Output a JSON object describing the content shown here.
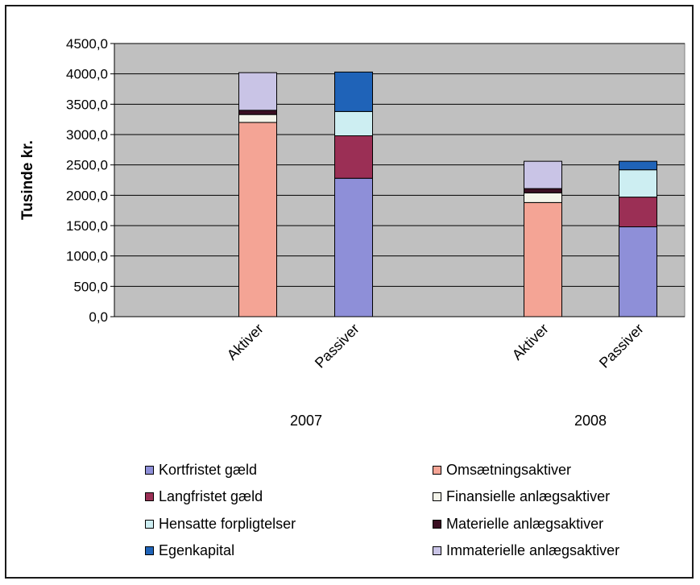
{
  "chart_data": {
    "type": "bar",
    "stacked": true,
    "ylabel": "Tusinde kr.",
    "ylim": [
      0,
      4500
    ],
    "yticks": [
      "0,0",
      "500,0",
      "1000,0",
      "1500,0",
      "2000,0",
      "2500,0",
      "3000,0",
      "3500,0",
      "4000,0",
      "4500,0"
    ],
    "groups": [
      "2007",
      "2008"
    ],
    "categories": [
      "Aktiver",
      "Passiver"
    ],
    "grid": true,
    "plot_background": "#c0c0c0",
    "legend_position": "bottom",
    "legend_order": [
      "Kortfristet gæld",
      "Omsætningsaktiver",
      "Langfristet gæld",
      "Finansielle anlægsaktiver",
      "Hensatte forpligtelser",
      "Materielle anlægsaktiver",
      "Egenkapital",
      "Immaterielle anlægsaktiver"
    ],
    "series": [
      {
        "name": "Omsætningsaktiver",
        "color": "#f4a495",
        "values": {
          "2007": {
            "Aktiver": 3200,
            "Passiver": 0
          },
          "2008": {
            "Aktiver": 1880,
            "Passiver": 0
          }
        }
      },
      {
        "name": "Finansielle anlægsaktiver",
        "color": "#f4f4ea",
        "values": {
          "2007": {
            "Aktiver": 130,
            "Passiver": 0
          },
          "2008": {
            "Aktiver": 160,
            "Passiver": 0
          }
        }
      },
      {
        "name": "Materielle anlægsaktiver",
        "color": "#3a0f22",
        "values": {
          "2007": {
            "Aktiver": 70,
            "Passiver": 0
          },
          "2008": {
            "Aktiver": 70,
            "Passiver": 0
          }
        }
      },
      {
        "name": "Immaterielle anlægsaktiver",
        "color": "#c9c4e6",
        "values": {
          "2007": {
            "Aktiver": 620,
            "Passiver": 0
          },
          "2008": {
            "Aktiver": 450,
            "Passiver": 0
          }
        }
      },
      {
        "name": "Kortfristet gæld",
        "color": "#8e8fd8",
        "values": {
          "2007": {
            "Aktiver": 0,
            "Passiver": 2280
          },
          "2008": {
            "Aktiver": 0,
            "Passiver": 1480
          }
        }
      },
      {
        "name": "Langfristet gæld",
        "color": "#9b2f55",
        "values": {
          "2007": {
            "Aktiver": 0,
            "Passiver": 700
          },
          "2008": {
            "Aktiver": 0,
            "Passiver": 490
          }
        }
      },
      {
        "name": "Hensatte forpligtelser",
        "color": "#cdeef2",
        "values": {
          "2007": {
            "Aktiver": 0,
            "Passiver": 400
          },
          "2008": {
            "Aktiver": 0,
            "Passiver": 450
          }
        }
      },
      {
        "name": "Egenkapital",
        "color": "#1f63b8",
        "values": {
          "2007": {
            "Aktiver": 0,
            "Passiver": 650
          },
          "2008": {
            "Aktiver": 0,
            "Passiver": 140
          }
        }
      }
    ]
  }
}
